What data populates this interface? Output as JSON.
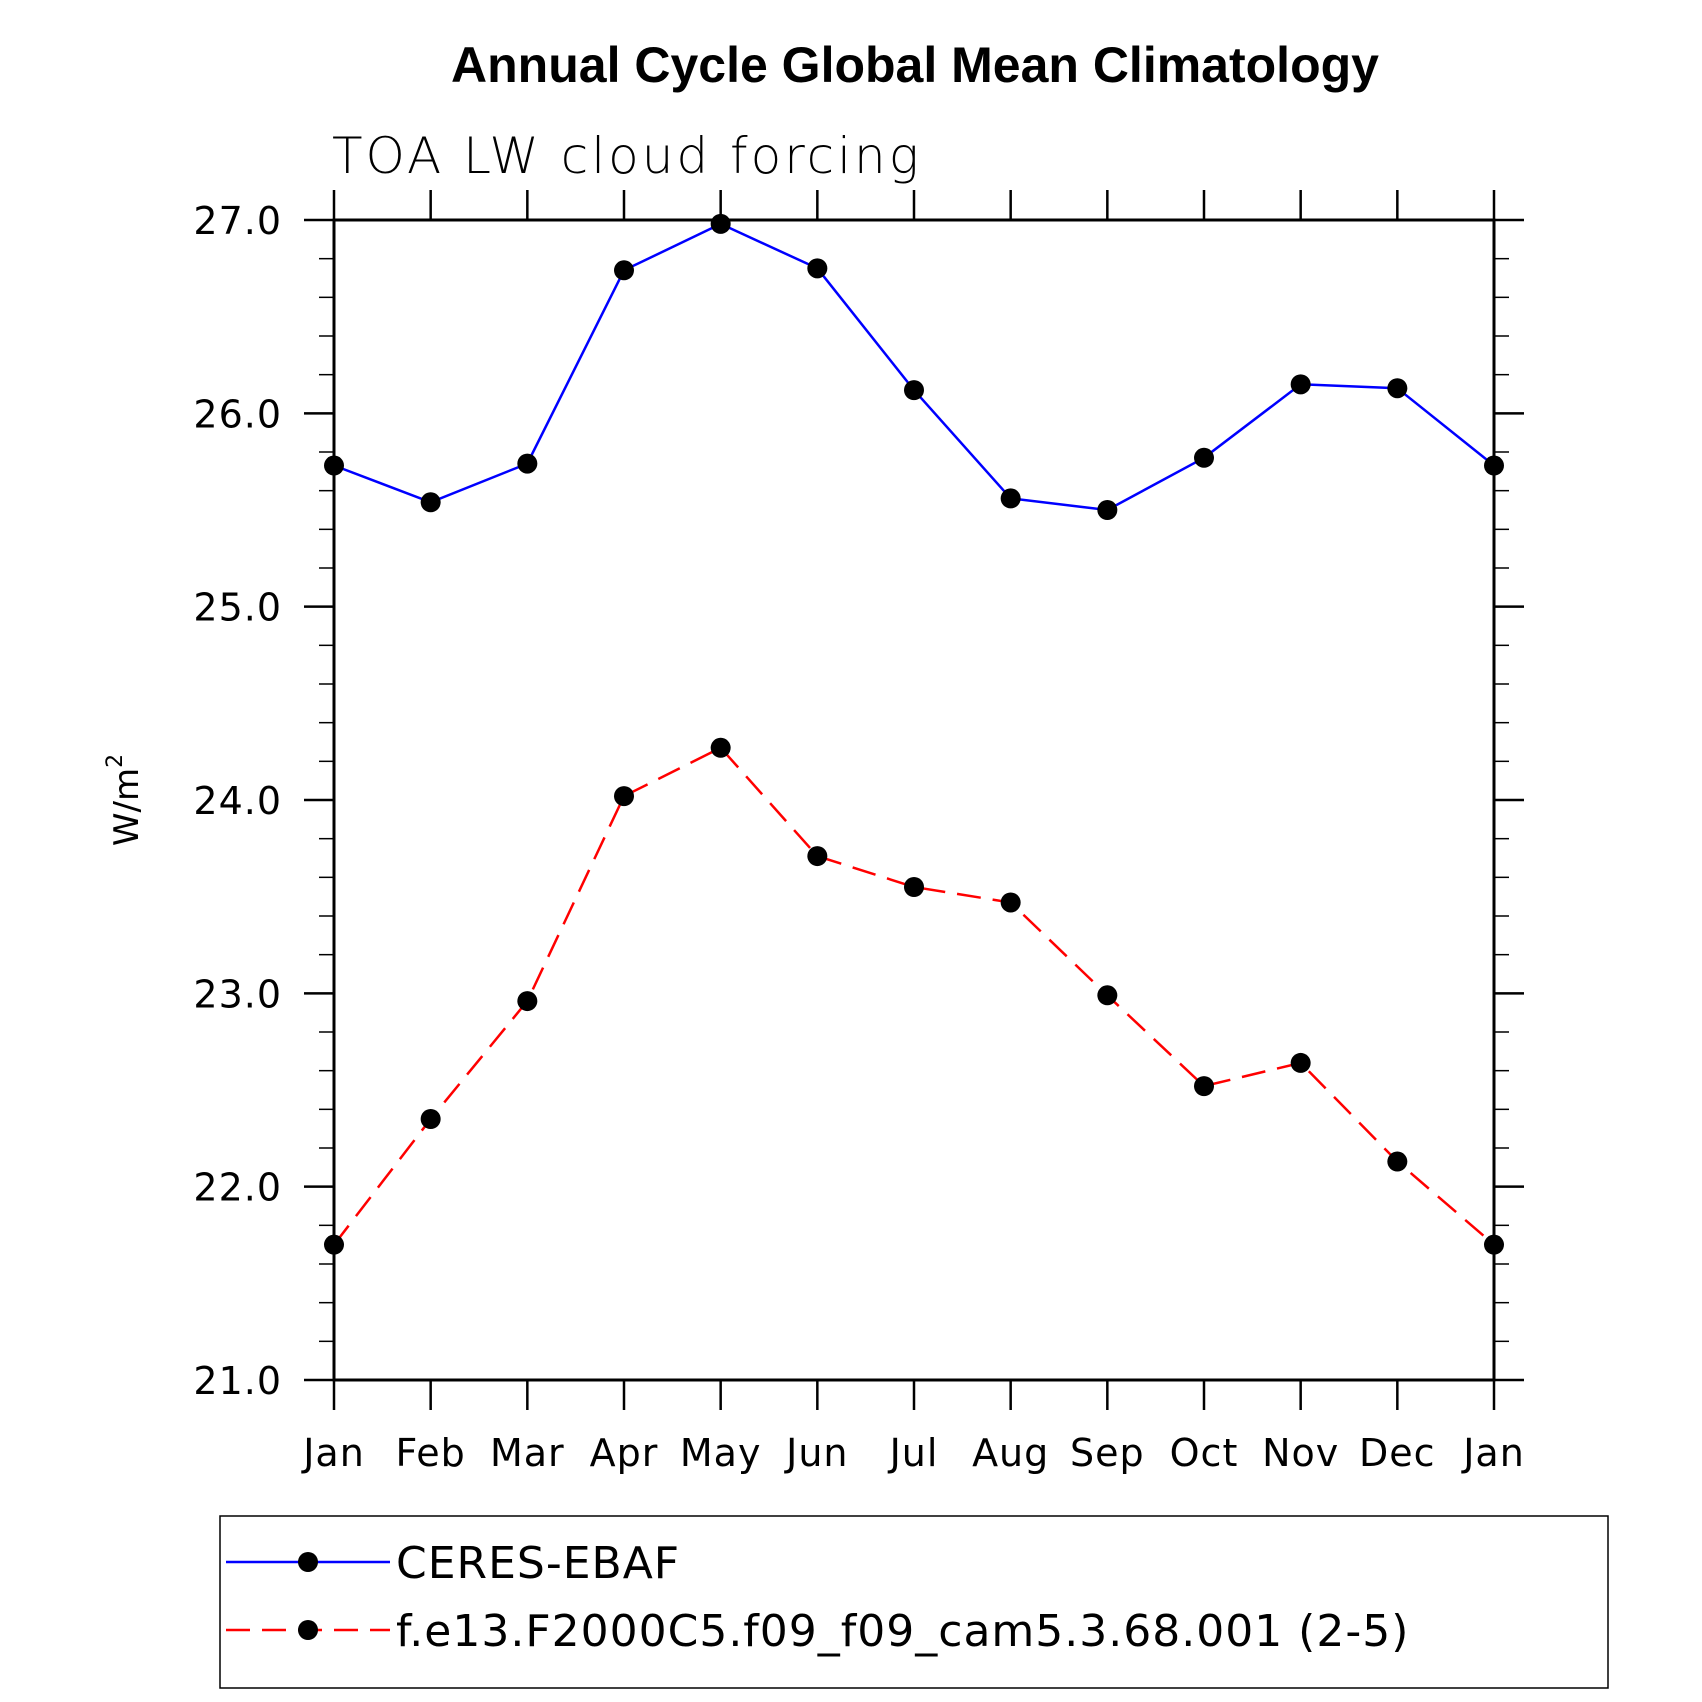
{
  "chart_data": {
    "type": "line",
    "title": "Annual Cycle Global Mean Climatology",
    "subtitle": "TOA LW cloud forcing",
    "ylabel": "W/m",
    "ylabel_superscript": "2",
    "xlabel": "",
    "ylim": [
      21.0,
      27.0
    ],
    "y_major_ticks": [
      "21.0",
      "22.0",
      "23.0",
      "24.0",
      "25.0",
      "26.0",
      "27.0"
    ],
    "categories": [
      "Jan",
      "Feb",
      "Mar",
      "Apr",
      "May",
      "Jun",
      "Jul",
      "Aug",
      "Sep",
      "Oct",
      "Nov",
      "Dec",
      "Jan"
    ],
    "grid": false,
    "legend_position": "bottom",
    "series": [
      {
        "name": "CERES-EBAF",
        "color": "#0000ff",
        "line_style": "solid",
        "marker": "filled-circle",
        "values": [
          25.73,
          25.54,
          25.74,
          26.74,
          26.98,
          26.75,
          26.12,
          25.56,
          25.5,
          25.77,
          26.15,
          26.13,
          25.73
        ]
      },
      {
        "name": "f.e13.F2000C5.f09_f09_cam5.3.68.001 (2-5)",
        "color": "#ff0000",
        "line_style": "dashed",
        "marker": "filled-circle",
        "values": [
          21.7,
          22.35,
          22.96,
          24.02,
          24.27,
          23.71,
          23.55,
          23.47,
          22.99,
          22.52,
          22.64,
          22.13,
          21.7
        ]
      }
    ]
  }
}
